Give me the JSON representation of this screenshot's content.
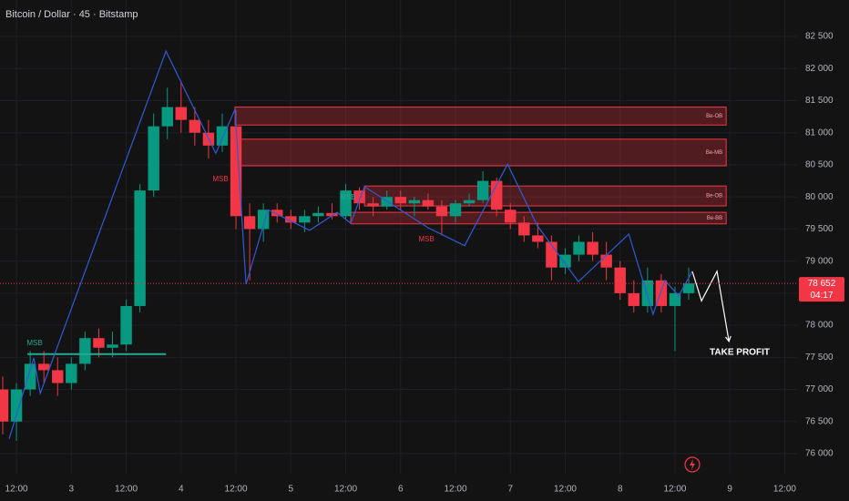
{
  "chart_data": {
    "type": "candlestick",
    "title": "Bitcoin / Dollar · 45 · Bitstamp",
    "x": [
      -3,
      0,
      3,
      6,
      9,
      12,
      15,
      18,
      21,
      24,
      27,
      30,
      33,
      36,
      39,
      42,
      45,
      48,
      51,
      54,
      57,
      60,
      63,
      66,
      69,
      72,
      75,
      78,
      81,
      84,
      87,
      90,
      93,
      96,
      99,
      102,
      105,
      108,
      111,
      114,
      117,
      120,
      123,
      126,
      129,
      132,
      135,
      138,
      141,
      144,
      147
    ],
    "open": [
      77000,
      76500,
      77000,
      77400,
      77300,
      77100,
      77400,
      77800,
      77650,
      77700,
      78300,
      80100,
      81100,
      81400,
      81200,
      81000,
      80800,
      81100,
      79700,
      79500,
      79800,
      79700,
      79600,
      79700,
      79750,
      79700,
      80100,
      79900,
      79850,
      80000,
      79900,
      79950,
      79850,
      79700,
      79900,
      79950,
      80250,
      79800,
      79600,
      79400,
      79300,
      78900,
      79100,
      79300,
      79100,
      78900,
      78500,
      78300,
      78700,
      78300,
      78500
    ],
    "high": [
      77200,
      77100,
      77600,
      77600,
      77500,
      77500,
      77900,
      77950,
      77900,
      78400,
      80200,
      81300,
      81700,
      81800,
      81400,
      81200,
      81300,
      81350,
      79900,
      79900,
      79900,
      79800,
      79800,
      79850,
      79900,
      80200,
      80150,
      80000,
      80100,
      80100,
      80000,
      80050,
      79950,
      79950,
      80050,
      80400,
      80300,
      79900,
      79700,
      79600,
      79400,
      79200,
      79400,
      79450,
      79300,
      79000,
      78700,
      78900,
      78800,
      78600,
      78900
    ],
    "low": [
      76300,
      76200,
      76900,
      77100,
      76900,
      77000,
      77300,
      77500,
      77500,
      77600,
      78200,
      80000,
      80900,
      81000,
      80800,
      80600,
      80700,
      79500,
      78700,
      79300,
      79600,
      79500,
      79450,
      79600,
      79650,
      79650,
      79800,
      79700,
      79800,
      79800,
      79700,
      79800,
      79400,
      79600,
      79850,
      79900,
      79700,
      79500,
      79300,
      79200,
      78700,
      78800,
      79000,
      79000,
      78700,
      78400,
      78200,
      78200,
      78200,
      77600,
      78400
    ],
    "close": [
      76500,
      77000,
      77400,
      77300,
      77100,
      77400,
      77800,
      77650,
      77700,
      78300,
      80100,
      81100,
      81400,
      81200,
      81000,
      80800,
      81100,
      79700,
      79500,
      79800,
      79700,
      79600,
      79700,
      79750,
      79700,
      80100,
      79900,
      79850,
      80000,
      79900,
      79950,
      79850,
      79700,
      79900,
      79950,
      80250,
      79800,
      79600,
      79400,
      79300,
      78900,
      79100,
      79300,
      79100,
      78900,
      78500,
      78300,
      78700,
      78300,
      78500,
      78652
    ],
    "up_color": "#089981",
    "down_color": "#f23645",
    "xlim": [
      -3.6,
      170.7
    ],
    "ylim": [
      75688,
      83068
    ],
    "xticks": [
      {
        "value": 0,
        "label": "12:00"
      },
      {
        "value": 12,
        "label": "3"
      },
      {
        "value": 24,
        "label": "12:00"
      },
      {
        "value": 36,
        "label": "4"
      },
      {
        "value": 48,
        "label": "12:00"
      },
      {
        "value": 60,
        "label": "5"
      },
      {
        "value": 72,
        "label": "12:00"
      },
      {
        "value": 84,
        "label": "6"
      },
      {
        "value": 96,
        "label": "12:00"
      },
      {
        "value": 108,
        "label": "7"
      },
      {
        "value": 120,
        "label": "12:00"
      },
      {
        "value": 132,
        "label": "8"
      },
      {
        "value": 144,
        "label": "12:00"
      },
      {
        "value": 156,
        "label": "9"
      },
      {
        "value": 168,
        "label": "12:00"
      }
    ],
    "yticks": [
      {
        "value": 76000,
        "label": "76 000"
      },
      {
        "value": 76500,
        "label": "76 500"
      },
      {
        "value": 77000,
        "label": "77 000"
      },
      {
        "value": 77500,
        "label": "77 500"
      },
      {
        "value": 78000,
        "label": "78 000"
      },
      {
        "value": 78500,
        "label": "78 500"
      },
      {
        "value": 79000,
        "label": "79 000"
      },
      {
        "value": 79500,
        "label": "79 500"
      },
      {
        "value": 80000,
        "label": "80 000"
      },
      {
        "value": 80500,
        "label": "80 500"
      },
      {
        "value": 81000,
        "label": "81 000"
      },
      {
        "value": 81500,
        "label": "81 500"
      },
      {
        "value": 82000,
        "label": "82 000"
      },
      {
        "value": 82500,
        "label": "82 500"
      }
    ],
    "grid": true,
    "last_price": {
      "value": 78652,
      "label": "78 652"
    },
    "countdown": "04:17",
    "zones": [
      {
        "label": "Be-OB",
        "x": [
          47.8,
          155.2
        ],
        "y": [
          81120,
          81400
        ]
      },
      {
        "label": "Be-MB",
        "x": [
          47.8,
          155.2
        ],
        "y": [
          80485,
          80900
        ]
      },
      {
        "label": "Be-OB",
        "x": [
          76.1,
          155.2
        ],
        "y": [
          79860,
          80170
        ]
      },
      {
        "label": "Be-BB",
        "x": [
          73.1,
          155.2
        ],
        "y": [
          79580,
          79760
        ]
      }
    ],
    "zigzag": {
      "color": "#2f5bd6",
      "x": [
        -1.6,
        3.8,
        5.2,
        32.7,
        43.6,
        47.8,
        50.2,
        55,
        64.1,
        70.1,
        73.1,
        76.1,
        90,
        98,
        107.4,
        113.9,
        122.9,
        133.9,
        139.2,
        141.8,
        144.8,
        147.8
      ],
      "y": [
        76230,
        77490,
        76940,
        82270,
        80680,
        81365,
        78640,
        79800,
        79480,
        79760,
        79590,
        80160,
        79520,
        79240,
        80510,
        79550,
        78680,
        79420,
        78170,
        78700,
        78460,
        78840
      ]
    },
    "projection": {
      "x": [
        147.8,
        149.8,
        153.2,
        155.8
      ],
      "y": [
        78840,
        78380,
        78840,
        77750
      ]
    },
    "msb_line": {
      "x": [
        2.4,
        32.7
      ],
      "y": 77550
    },
    "labels": {
      "msb_1": "MSB",
      "msb_2": "MSB",
      "msb_3": "MSB",
      "msb_4": "MSB",
      "take_profit": "TAKE PROFIT"
    }
  }
}
